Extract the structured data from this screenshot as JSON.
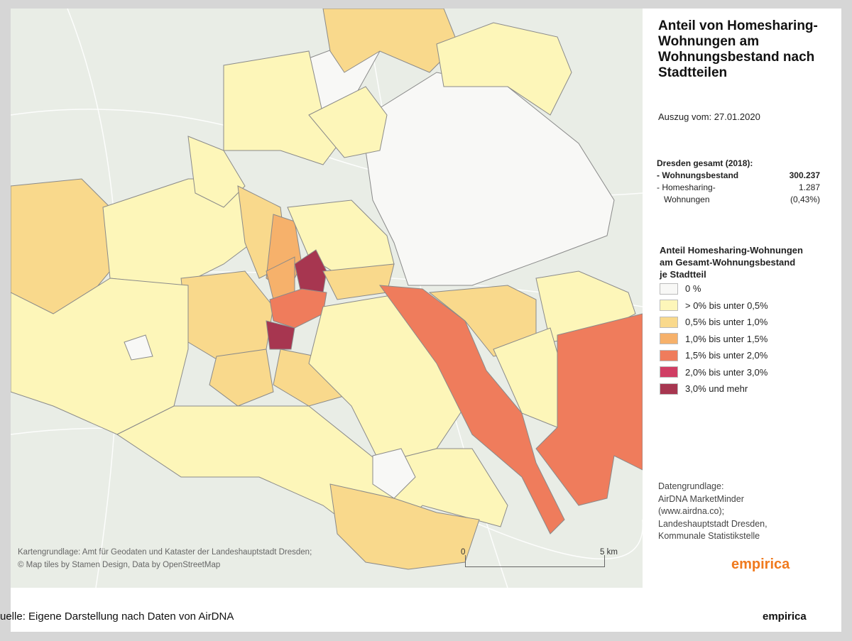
{
  "title": "Anteil von Homesharing-Wohnungen am Wohnungsbestand nach Stadtteilen",
  "subtitle": "Auszug vom: 27.01.2020",
  "stats": {
    "heading": "Dresden gesamt (2018):",
    "stock_label": "- Wohnungsbestand",
    "stock_value": "300.237",
    "hs_label_1": "- Homesharing-",
    "hs_label_2": "Wohnungen",
    "hs_value": "1.287",
    "hs_share": "(0,43%)"
  },
  "legend": {
    "title_lines": [
      "Anteil Homesharing-Wohnungen",
      "am Gesamt-Wohnungsbestand",
      "je Stadtteil"
    ],
    "items": [
      {
        "label": "0 %",
        "color": "#f8f8f6"
      },
      {
        "label": "> 0% bis unter 0,5%",
        "color": "#fdf6b9"
      },
      {
        "label": "0,5% bis unter 1,0%",
        "color": "#f9d98c"
      },
      {
        "label": "1,0% bis unter 1,5%",
        "color": "#f6b16b"
      },
      {
        "label": "1,5% bis unter 2,0%",
        "color": "#ef7c5c"
      },
      {
        "label": "2,0% bis unter  3,0%",
        "color": "#d03e64"
      },
      {
        "label": "3,0% und mehr",
        "color": "#a73650"
      }
    ]
  },
  "sources": [
    "Datengrundlage:",
    "AirDNA MarketMinder",
    "(www.airdna.co);",
    "Landeshauptstadt Dresden,",
    "Kommunale Statistikstelle"
  ],
  "logo": "empirica",
  "map": {
    "credit_1": "Kartengrundlage: Amt für Geodaten und Kataster der Landeshauptstadt Dresden;",
    "credit_2": "© Map tiles by Stamen Design, Data by OpenStreetMap",
    "scale_start": "0",
    "scale_end": "5 km"
  },
  "footer": {
    "source": "uelle: Eigene Darstellung nach Daten von AirDNA",
    "brand": "empirica"
  }
}
